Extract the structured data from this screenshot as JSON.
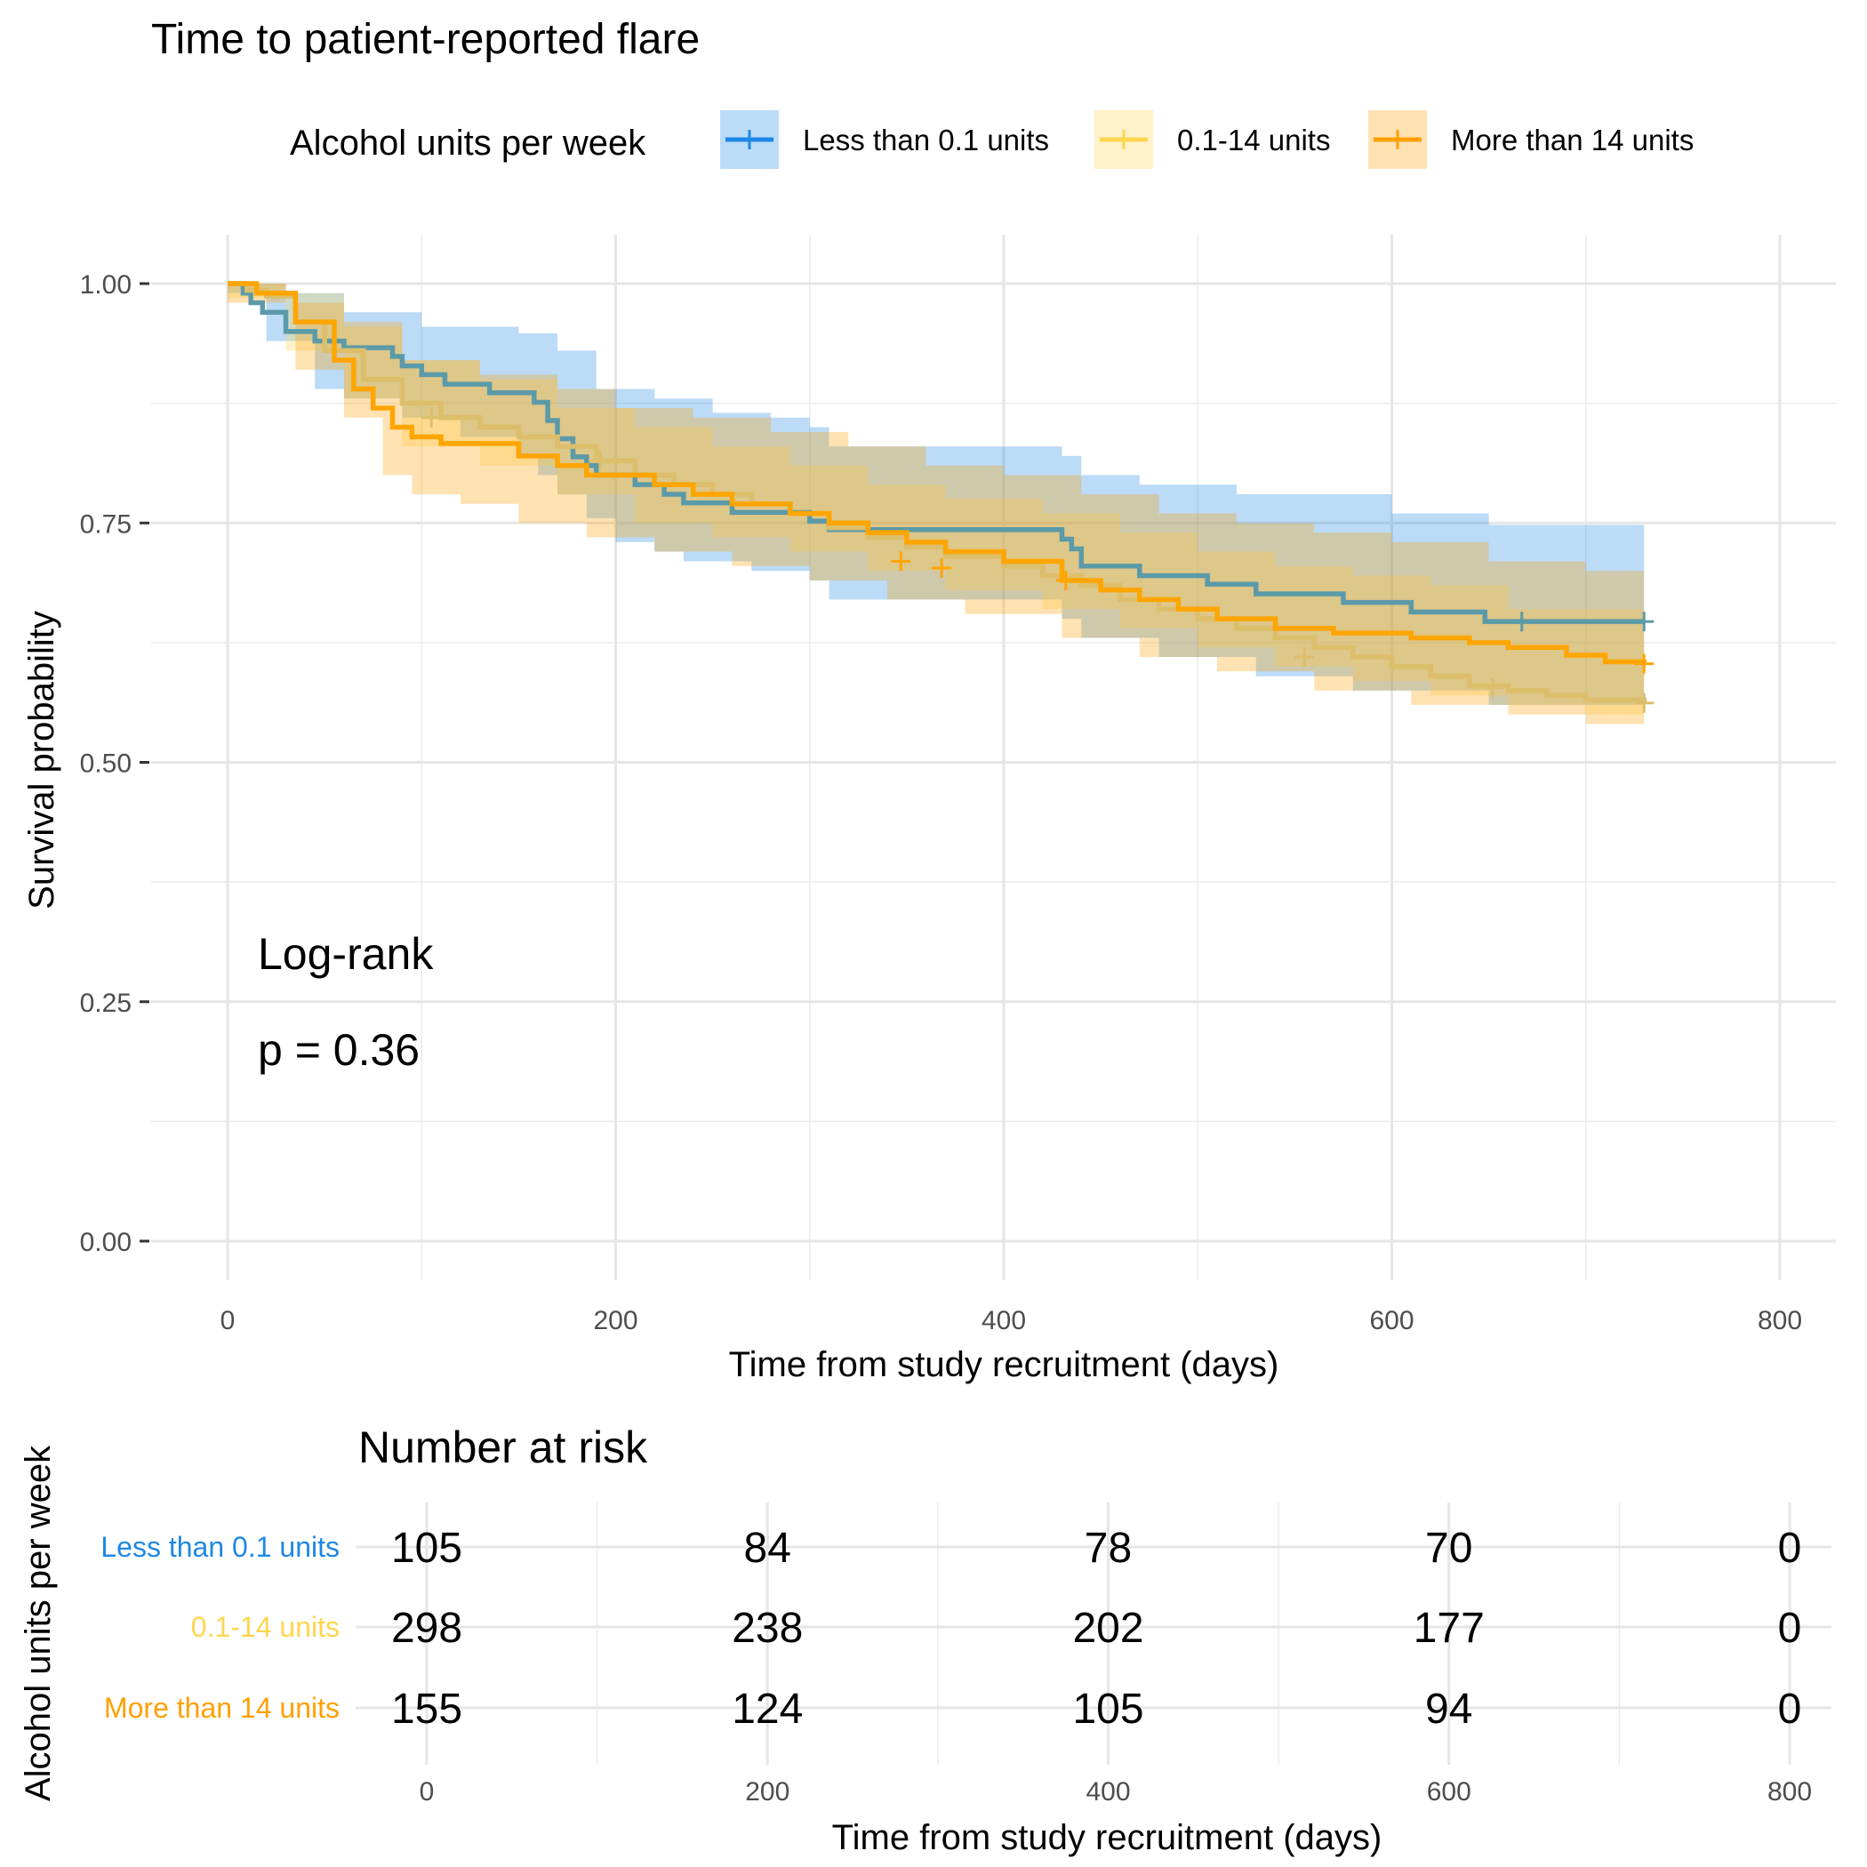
{
  "chart_data": {
    "type": "line",
    "subtype": "kaplan-meier",
    "title": "Time to patient-reported flare",
    "xlabel": "Time from study recruitment (days)",
    "ylabel": "Survival probability",
    "xlim": [
      -10,
      820
    ],
    "ylim": [
      -0.04,
      1.04
    ],
    "x_ticks": [
      "0",
      "200",
      "400",
      "600",
      "800"
    ],
    "y_ticks": [
      "0.00",
      "0.25",
      "0.50",
      "0.75",
      "1.00"
    ],
    "grid": true,
    "confidence_bands": true,
    "legend": {
      "title": "Alcohol units per week",
      "position": "top"
    },
    "annotation": {
      "line1": "Log-rank",
      "line2": "p = 0.36"
    },
    "series": [
      {
        "name": "Less than 0.1 units",
        "color": "#1E88E5",
        "line_color": "#5B9AA8",
        "steps": [
          [
            0,
            1.0
          ],
          [
            8,
            0.99
          ],
          [
            12,
            0.98
          ],
          [
            18,
            0.97
          ],
          [
            30,
            0.95
          ],
          [
            45,
            0.94
          ],
          [
            60,
            0.933
          ],
          [
            85,
            0.924
          ],
          [
            90,
            0.914
          ],
          [
            100,
            0.905
          ],
          [
            112,
            0.895
          ],
          [
            135,
            0.886
          ],
          [
            158,
            0.876
          ],
          [
            165,
            0.857
          ],
          [
            170,
            0.838
          ],
          [
            178,
            0.819
          ],
          [
            185,
            0.81
          ],
          [
            190,
            0.8
          ],
          [
            210,
            0.79
          ],
          [
            225,
            0.78
          ],
          [
            235,
            0.771
          ],
          [
            260,
            0.761
          ],
          [
            300,
            0.752
          ],
          [
            310,
            0.743
          ],
          [
            430,
            0.733
          ],
          [
            435,
            0.723
          ],
          [
            440,
            0.705
          ],
          [
            470,
            0.695
          ],
          [
            505,
            0.686
          ],
          [
            530,
            0.676
          ],
          [
            575,
            0.667
          ],
          [
            610,
            0.657
          ],
          [
            648,
            0.647
          ],
          [
            730,
            0.647
          ]
        ],
        "ci_upper": [
          [
            0,
            1.0
          ],
          [
            30,
            0.99
          ],
          [
            60,
            0.97
          ],
          [
            100,
            0.955
          ],
          [
            150,
            0.948
          ],
          [
            170,
            0.93
          ],
          [
            190,
            0.89
          ],
          [
            220,
            0.88
          ],
          [
            250,
            0.865
          ],
          [
            280,
            0.86
          ],
          [
            300,
            0.85
          ],
          [
            310,
            0.83
          ],
          [
            430,
            0.82
          ],
          [
            440,
            0.8
          ],
          [
            470,
            0.79
          ],
          [
            520,
            0.78
          ],
          [
            600,
            0.76
          ],
          [
            650,
            0.748
          ],
          [
            730,
            0.748
          ]
        ],
        "ci_lower": [
          [
            0,
            0.99
          ],
          [
            20,
            0.94
          ],
          [
            45,
            0.89
          ],
          [
            60,
            0.88
          ],
          [
            90,
            0.86
          ],
          [
            120,
            0.84
          ],
          [
            150,
            0.82
          ],
          [
            160,
            0.8
          ],
          [
            170,
            0.78
          ],
          [
            185,
            0.755
          ],
          [
            200,
            0.73
          ],
          [
            220,
            0.72
          ],
          [
            235,
            0.71
          ],
          [
            270,
            0.7
          ],
          [
            300,
            0.69
          ],
          [
            310,
            0.67
          ],
          [
            430,
            0.65
          ],
          [
            440,
            0.63
          ],
          [
            480,
            0.61
          ],
          [
            530,
            0.59
          ],
          [
            580,
            0.575
          ],
          [
            650,
            0.56
          ],
          [
            730,
            0.56
          ]
        ],
        "censor": [
          [
            667,
            0.647
          ],
          [
            730,
            0.647
          ]
        ],
        "risk": [
          "105",
          "84",
          "78",
          "70",
          "0"
        ]
      },
      {
        "name": "0.1-14 units",
        "color": "#FFD54F",
        "line_color": "#DDBE6A",
        "steps": [
          [
            0,
            1.0
          ],
          [
            10,
            0.993
          ],
          [
            20,
            0.987
          ],
          [
            35,
            0.96
          ],
          [
            50,
            0.93
          ],
          [
            70,
            0.9
          ],
          [
            90,
            0.875
          ],
          [
            110,
            0.86
          ],
          [
            130,
            0.85
          ],
          [
            150,
            0.84
          ],
          [
            170,
            0.83
          ],
          [
            190,
            0.815
          ],
          [
            210,
            0.8
          ],
          [
            230,
            0.79
          ],
          [
            250,
            0.78
          ],
          [
            270,
            0.77
          ],
          [
            290,
            0.76
          ],
          [
            310,
            0.745
          ],
          [
            330,
            0.735
          ],
          [
            350,
            0.725
          ],
          [
            370,
            0.715
          ],
          [
            400,
            0.705
          ],
          [
            420,
            0.695
          ],
          [
            440,
            0.685
          ],
          [
            460,
            0.67
          ],
          [
            480,
            0.66
          ],
          [
            500,
            0.65
          ],
          [
            520,
            0.64
          ],
          [
            540,
            0.63
          ],
          [
            560,
            0.62
          ],
          [
            580,
            0.61
          ],
          [
            600,
            0.6
          ],
          [
            620,
            0.59
          ],
          [
            640,
            0.58
          ],
          [
            660,
            0.575
          ],
          [
            680,
            0.57
          ],
          [
            700,
            0.565
          ],
          [
            730,
            0.562
          ]
        ],
        "ci_upper": [
          [
            0,
            1.0
          ],
          [
            30,
            0.99
          ],
          [
            60,
            0.955
          ],
          [
            90,
            0.92
          ],
          [
            130,
            0.9
          ],
          [
            170,
            0.87
          ],
          [
            210,
            0.85
          ],
          [
            250,
            0.83
          ],
          [
            290,
            0.81
          ],
          [
            330,
            0.79
          ],
          [
            370,
            0.775
          ],
          [
            420,
            0.76
          ],
          [
            460,
            0.74
          ],
          [
            500,
            0.72
          ],
          [
            540,
            0.705
          ],
          [
            580,
            0.695
          ],
          [
            620,
            0.685
          ],
          [
            660,
            0.66
          ],
          [
            730,
            0.63
          ]
        ],
        "ci_lower": [
          [
            0,
            0.985
          ],
          [
            30,
            0.93
          ],
          [
            60,
            0.88
          ],
          [
            90,
            0.83
          ],
          [
            130,
            0.81
          ],
          [
            170,
            0.78
          ],
          [
            210,
            0.75
          ],
          [
            250,
            0.735
          ],
          [
            290,
            0.72
          ],
          [
            330,
            0.7
          ],
          [
            370,
            0.68
          ],
          [
            420,
            0.66
          ],
          [
            460,
            0.64
          ],
          [
            500,
            0.62
          ],
          [
            540,
            0.6
          ],
          [
            580,
            0.585
          ],
          [
            620,
            0.57
          ],
          [
            660,
            0.56
          ],
          [
            700,
            0.55
          ],
          [
            730,
            0.535
          ]
        ],
        "censor": [
          [
            105,
            0.86
          ],
          [
            192,
            0.815
          ],
          [
            555,
            0.61
          ],
          [
            652,
            0.578
          ],
          [
            730,
            0.562
          ]
        ],
        "risk": [
          "298",
          "238",
          "202",
          "177",
          "0"
        ]
      },
      {
        "name": "More than 14 units",
        "color": "#FFA000",
        "line_color": "#FFA500",
        "steps": [
          [
            0,
            1.0
          ],
          [
            15,
            0.99
          ],
          [
            35,
            0.96
          ],
          [
            55,
            0.92
          ],
          [
            65,
            0.89
          ],
          [
            75,
            0.87
          ],
          [
            85,
            0.85
          ],
          [
            95,
            0.84
          ],
          [
            110,
            0.833
          ],
          [
            150,
            0.82
          ],
          [
            170,
            0.81
          ],
          [
            185,
            0.8
          ],
          [
            220,
            0.79
          ],
          [
            240,
            0.78
          ],
          [
            260,
            0.77
          ],
          [
            290,
            0.76
          ],
          [
            310,
            0.75
          ],
          [
            330,
            0.74
          ],
          [
            350,
            0.73
          ],
          [
            370,
            0.72
          ],
          [
            400,
            0.71
          ],
          [
            430,
            0.69
          ],
          [
            450,
            0.68
          ],
          [
            470,
            0.67
          ],
          [
            490,
            0.66
          ],
          [
            510,
            0.65
          ],
          [
            540,
            0.64
          ],
          [
            570,
            0.635
          ],
          [
            610,
            0.63
          ],
          [
            640,
            0.625
          ],
          [
            660,
            0.62
          ],
          [
            690,
            0.612
          ],
          [
            710,
            0.605
          ],
          [
            730,
            0.603
          ]
        ],
        "ci_upper": [
          [
            0,
            1.0
          ],
          [
            30,
            0.98
          ],
          [
            60,
            0.96
          ],
          [
            90,
            0.92
          ],
          [
            130,
            0.905
          ],
          [
            170,
            0.89
          ],
          [
            200,
            0.87
          ],
          [
            240,
            0.86
          ],
          [
            280,
            0.845
          ],
          [
            320,
            0.83
          ],
          [
            360,
            0.81
          ],
          [
            400,
            0.8
          ],
          [
            440,
            0.78
          ],
          [
            480,
            0.76
          ],
          [
            520,
            0.75
          ],
          [
            560,
            0.74
          ],
          [
            600,
            0.73
          ],
          [
            650,
            0.71
          ],
          [
            700,
            0.7
          ],
          [
            730,
            0.685
          ]
        ],
        "ci_lower": [
          [
            0,
            0.98
          ],
          [
            35,
            0.91
          ],
          [
            60,
            0.86
          ],
          [
            80,
            0.8
          ],
          [
            95,
            0.78
          ],
          [
            120,
            0.77
          ],
          [
            150,
            0.75
          ],
          [
            185,
            0.735
          ],
          [
            220,
            0.72
          ],
          [
            260,
            0.705
          ],
          [
            300,
            0.69
          ],
          [
            340,
            0.67
          ],
          [
            380,
            0.655
          ],
          [
            430,
            0.63
          ],
          [
            470,
            0.61
          ],
          [
            510,
            0.595
          ],
          [
            560,
            0.575
          ],
          [
            610,
            0.56
          ],
          [
            660,
            0.55
          ],
          [
            700,
            0.54
          ],
          [
            730,
            0.505
          ]
        ],
        "censor": [
          [
            347,
            0.71
          ],
          [
            368,
            0.703
          ],
          [
            432,
            0.69
          ],
          [
            730,
            0.603
          ]
        ],
        "risk": [
          "155",
          "124",
          "105",
          "94",
          "0"
        ]
      }
    ],
    "risk_table": {
      "title": "Number at risk",
      "ylabel": "Alcohol units per week",
      "xlabel": "Time from study recruitment (days)",
      "x_ticks": [
        "0",
        "200",
        "400",
        "600",
        "800"
      ]
    }
  }
}
